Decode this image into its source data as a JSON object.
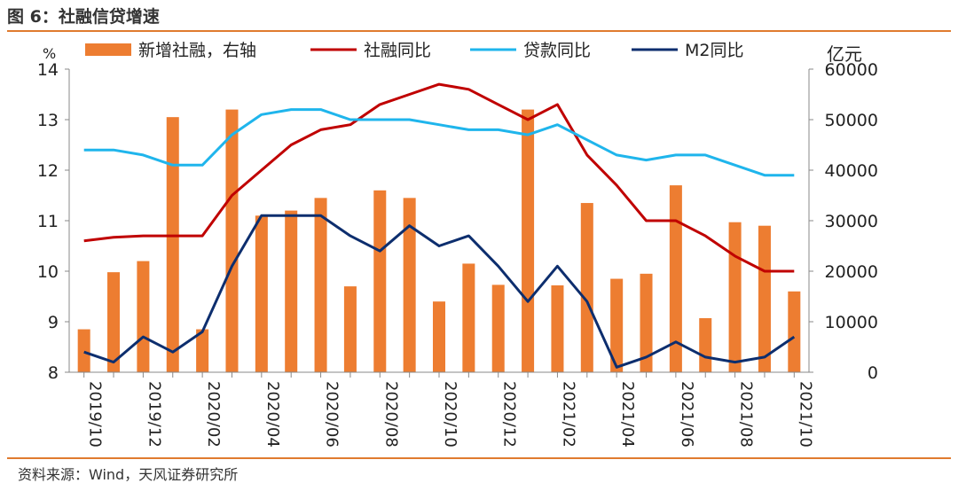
{
  "figure": {
    "title": "图 6：社融信贷增速",
    "source": "资料来源：Wind，天风证券研究所"
  },
  "chart_data": {
    "type": "bar+line",
    "left_axis": {
      "unit_label": "%",
      "min": 8,
      "max": 14,
      "ticks": [
        8,
        9,
        10,
        11,
        12,
        13,
        14
      ]
    },
    "right_axis": {
      "unit_label": "亿元",
      "min": 0,
      "max": 60000,
      "ticks": [
        0,
        10000,
        20000,
        30000,
        40000,
        50000,
        60000
      ]
    },
    "x_tick_labels": [
      "2019/10",
      "2019/12",
      "2020/02",
      "2020/04",
      "2020/06",
      "2020/08",
      "2020/10",
      "2020/12",
      "2021/02",
      "2021/04",
      "2021/06",
      "2021/08",
      "2021/10"
    ],
    "categories": [
      "2019/10",
      "2019/11",
      "2019/12",
      "2020/01",
      "2020/02",
      "2020/03",
      "2020/04",
      "2020/05",
      "2020/06",
      "2020/07",
      "2020/08",
      "2020/09",
      "2020/10",
      "2020/11",
      "2020/12",
      "2021/01",
      "2021/02",
      "2021/03",
      "2021/04",
      "2021/05",
      "2021/06",
      "2021/07",
      "2021/08",
      "2021/09",
      "2021/10"
    ],
    "bars": {
      "name": "新增社融，右轴",
      "axis": "right",
      "color": "#ED7D31",
      "values": [
        8500,
        19800,
        22000,
        50500,
        8500,
        52000,
        31000,
        32000,
        34500,
        17000,
        36000,
        34500,
        14000,
        21500,
        17300,
        52000,
        17200,
        33500,
        18500,
        19500,
        37000,
        10700,
        29700,
        29000,
        16000
      ]
    },
    "lines": [
      {
        "name": "社融同比",
        "axis": "left",
        "color": "#C00000",
        "values": [
          10.6,
          10.67,
          10.7,
          10.7,
          10.7,
          11.5,
          12.0,
          12.5,
          12.8,
          12.9,
          13.3,
          13.5,
          13.7,
          13.6,
          13.3,
          13.0,
          13.3,
          12.3,
          11.7,
          11.0,
          11.0,
          10.7,
          10.3,
          10.0,
          10.0
        ]
      },
      {
        "name": "贷款同比",
        "axis": "left",
        "color": "#1FB5EC",
        "values": [
          12.4,
          12.4,
          12.3,
          12.1,
          12.1,
          12.7,
          13.1,
          13.2,
          13.2,
          13.0,
          13.0,
          13.0,
          12.9,
          12.8,
          12.8,
          12.7,
          12.9,
          12.6,
          12.3,
          12.2,
          12.3,
          12.3,
          12.1,
          11.9,
          11.9
        ]
      },
      {
        "name": "M2同比",
        "axis": "left",
        "color": "#0D2E6E",
        "values": [
          8.4,
          8.2,
          8.7,
          8.4,
          8.8,
          10.1,
          11.1,
          11.1,
          11.1,
          10.7,
          10.4,
          10.9,
          10.5,
          10.7,
          10.1,
          9.4,
          10.1,
          9.4,
          8.1,
          8.3,
          8.6,
          8.3,
          8.2,
          8.3,
          8.7
        ]
      }
    ],
    "legend_position": "top",
    "grid": false
  }
}
